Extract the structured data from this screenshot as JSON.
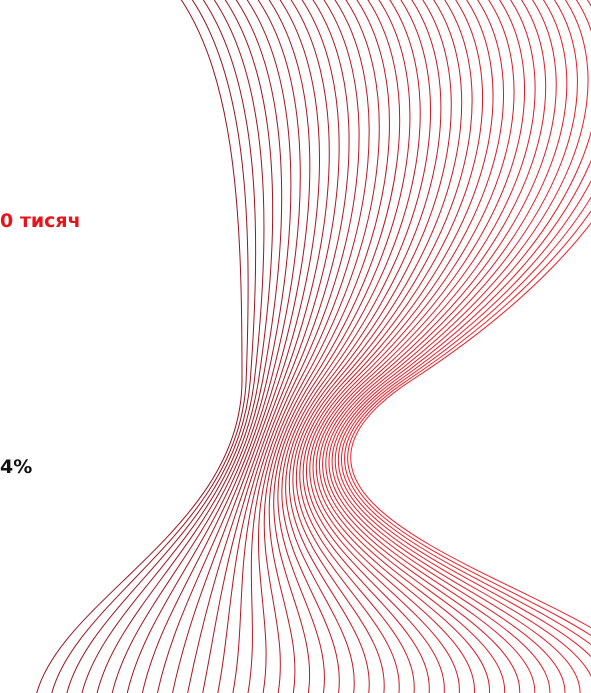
{
  "texts": {
    "first": "0 тисяч",
    "second": "4%"
  }
}
